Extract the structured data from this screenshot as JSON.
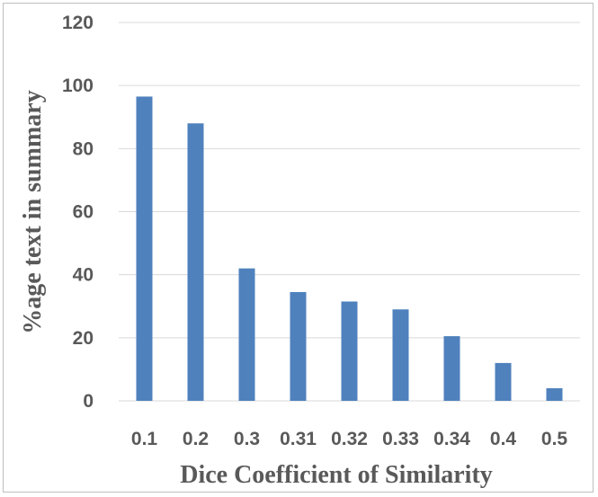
{
  "chart_data": {
    "type": "bar",
    "title": "",
    "xlabel": "Dice Coefficient of Similarity",
    "ylabel": "%age text in summary",
    "categories": [
      "0.1",
      "0.2",
      "0.3",
      "0.31",
      "0.32",
      "0.33",
      "0.34",
      "0.4",
      "0.5"
    ],
    "series": [
      {
        "values": [
          96.5,
          88,
          42,
          34.5,
          31.5,
          29,
          20.5,
          12,
          4
        ]
      }
    ],
    "ylim": [
      0,
      120
    ],
    "yticks": [
      0,
      20,
      40,
      60,
      80,
      100,
      120
    ],
    "grid": true,
    "legend": "none",
    "colors": {
      "bar": "#4f81bd",
      "grid": "#d9d9d9",
      "text": "#595959"
    }
  }
}
